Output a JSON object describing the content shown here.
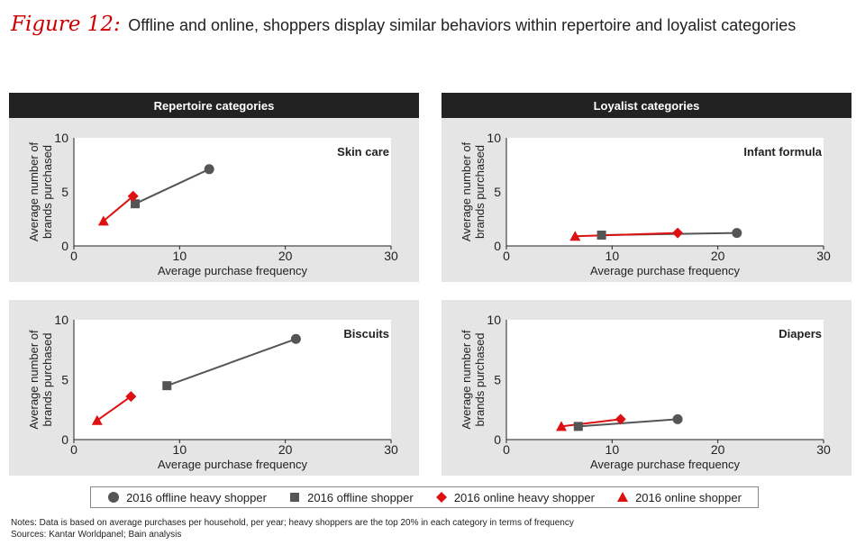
{
  "figure": {
    "label": "Figure 12:",
    "title": "Offline and online, shoppers display similar behaviors within repertoire and loyalist categories"
  },
  "headers": {
    "repertoire": "Repertoire categories",
    "loyalist": "Loyalist categories"
  },
  "legend": [
    {
      "label": "2016 offline heavy shopper",
      "marker": "circle",
      "color": "#555555"
    },
    {
      "label": "2016 offline shopper",
      "marker": "square",
      "color": "#555555"
    },
    {
      "label": "2016 online heavy shopper",
      "marker": "diamond",
      "color": "#dd1111"
    },
    {
      "label": "2016 online shopper",
      "marker": "triangle",
      "color": "#dd1111"
    }
  ],
  "notes": {
    "line1": "Notes: Data is based on average purchases per household, per year; heavy shoppers are the top 20% in each category in terms of frequency",
    "line2": "Sources: Kantar Worldpanel; Bain analysis"
  },
  "colors": {
    "offline": "#555555",
    "online": "#dd1111",
    "header_bg": "#222222",
    "panel_bg": "#e5e5e5",
    "accent": "#cc0000"
  },
  "chart_data": [
    {
      "type": "scatter",
      "title": "Skin care",
      "xlabel": "Average purchase frequency",
      "ylabel": "Average number of brands purchased",
      "xlim": [
        0,
        30
      ],
      "ylim": [
        0,
        10
      ],
      "xticks": [
        0,
        10,
        20,
        30
      ],
      "yticks": [
        0,
        5,
        10
      ],
      "offline": {
        "heavy": [
          12.8,
          7.1
        ],
        "regular": [
          5.8,
          3.9
        ]
      },
      "online": {
        "heavy": [
          5.6,
          4.6
        ],
        "regular": [
          2.8,
          2.3
        ]
      }
    },
    {
      "type": "scatter",
      "title": "Infant formula",
      "xlabel": "Average purchase frequency",
      "ylabel": "Average number of brands purchased",
      "xlim": [
        0,
        30
      ],
      "ylim": [
        0,
        10
      ],
      "xticks": [
        0,
        10,
        20,
        30
      ],
      "yticks": [
        0,
        5,
        10
      ],
      "offline": {
        "heavy": [
          21.8,
          1.2
        ],
        "regular": [
          9.0,
          1.0
        ]
      },
      "online": {
        "heavy": [
          16.2,
          1.2
        ],
        "regular": [
          6.5,
          0.9
        ]
      }
    },
    {
      "type": "scatter",
      "title": "Biscuits",
      "xlabel": "Average purchase frequency",
      "ylabel": "Average number of brands purchased",
      "xlim": [
        0,
        30
      ],
      "ylim": [
        0,
        10
      ],
      "xticks": [
        0,
        10,
        20,
        30
      ],
      "yticks": [
        0,
        5,
        10
      ],
      "offline": {
        "heavy": [
          21.0,
          8.4
        ],
        "regular": [
          8.8,
          4.5
        ]
      },
      "online": {
        "heavy": [
          5.4,
          3.6
        ],
        "regular": [
          2.2,
          1.6
        ]
      }
    },
    {
      "type": "scatter",
      "title": "Diapers",
      "xlabel": "Average purchase frequency",
      "ylabel": "Average number of brands purchased",
      "xlim": [
        0,
        30
      ],
      "ylim": [
        0,
        10
      ],
      "xticks": [
        0,
        10,
        20,
        30
      ],
      "yticks": [
        0,
        5,
        10
      ],
      "offline": {
        "heavy": [
          16.2,
          1.7
        ],
        "regular": [
          6.8,
          1.1
        ]
      },
      "online": {
        "heavy": [
          10.8,
          1.7
        ],
        "regular": [
          5.2,
          1.1
        ]
      }
    }
  ]
}
